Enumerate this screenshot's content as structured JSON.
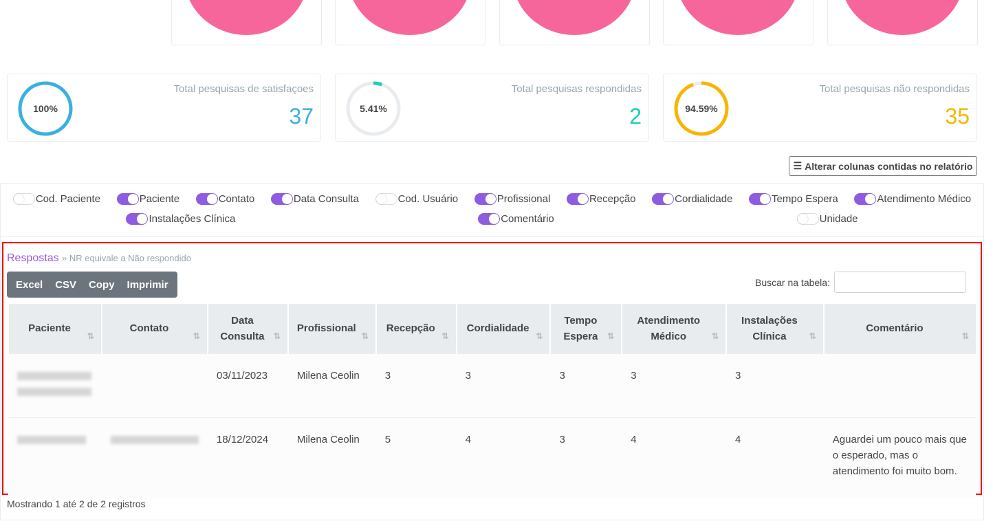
{
  "stats": [
    {
      "label": "Total pesquisas de satisfaçoes",
      "value": "37",
      "percent": "100%",
      "fraction": 1.0,
      "color": "#3ab0e2"
    },
    {
      "label": "Total pesquisas respondidas",
      "value": "2",
      "percent": "5.41%",
      "fraction": 0.0541,
      "color": "#1ccfb5"
    },
    {
      "label": "Total pesquisas não respondidas",
      "value": "35",
      "percent": "94.59%",
      "fraction": 0.9459,
      "color": "#f7b500"
    }
  ],
  "columns_button": "Alterar colunas contidas no relatório",
  "toggles": [
    {
      "label": "Cod. Paciente",
      "on": false
    },
    {
      "label": "Paciente",
      "on": true
    },
    {
      "label": "Contato",
      "on": true
    },
    {
      "label": "Data Consulta",
      "on": true
    },
    {
      "label": "Cod. Usuário",
      "on": false
    },
    {
      "label": "Profissional",
      "on": true
    },
    {
      "label": "Recepção",
      "on": true
    },
    {
      "label": "Cordialidade",
      "on": true
    },
    {
      "label": "Tempo Espera",
      "on": true
    },
    {
      "label": "Atendimento Médico",
      "on": true
    },
    {
      "label": "Instalações Clínica",
      "on": true
    },
    {
      "label": "Comentário",
      "on": true
    },
    {
      "label": "Unidade",
      "on": false
    }
  ],
  "section": {
    "title": "Respostas",
    "subtitle": "» NR equivale a Não respondido"
  },
  "buttons": [
    "Excel",
    "CSV",
    "Copy",
    "Imprimir"
  ],
  "search_label": "Buscar na tabela:",
  "table": {
    "headers": [
      "Paciente",
      "Contato",
      "Data Consulta",
      "Profissional",
      "Recepção",
      "Cordialidade",
      "Tempo Espera",
      "Atendimento Médico",
      "Instalações Clínica",
      "Comentário"
    ],
    "rows": [
      [
        "",
        "",
        "03/11/2023",
        "Milena Ceolin",
        "3",
        "3",
        "3",
        "3",
        "3",
        ""
      ],
      [
        "",
        "",
        "18/12/2024",
        "Milena Ceolin",
        "5",
        "4",
        "3",
        "4",
        "4",
        "Aguardei um pouco mais que o esperado, mas o atendimento foi muito bom."
      ]
    ]
  },
  "footer": "Mostrando 1 até 2 de 2 registros"
}
